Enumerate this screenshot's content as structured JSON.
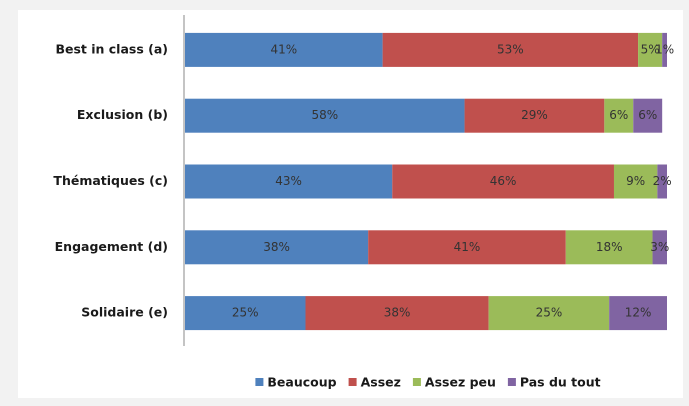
{
  "chart_data": {
    "type": "stacked-bar",
    "categories": [
      "Best in class (a)",
      "Exclusion (b)",
      "Thématiques (c)",
      "Engagement (d)",
      "Solidaire (e)"
    ],
    "series": [
      {
        "name": "Beaucoup",
        "color": "#4f81bd",
        "values": [
          41,
          58,
          43,
          38,
          25
        ],
        "value_labels": [
          "41%",
          "58%",
          "43%",
          "38%",
          "25%"
        ]
      },
      {
        "name": "Assez",
        "color": "#c0504d",
        "values": [
          53,
          29,
          46,
          41,
          38
        ],
        "value_labels": [
          "53%",
          "29%",
          "46%",
          "41%",
          "38%"
        ]
      },
      {
        "name": "Assez peu",
        "color": "#9bbb59",
        "values": [
          5,
          6,
          9,
          18,
          25
        ],
        "value_labels": [
          "5%",
          "6%",
          "9%",
          "18%",
          "25%"
        ]
      },
      {
        "name": "Pas du tout",
        "color": "#8064a2",
        "values": [
          1,
          6,
          2,
          3,
          12
        ],
        "value_labels": [
          "1%",
          "6%",
          "2%",
          "3%",
          "12%"
        ]
      }
    ],
    "legend": "bottom"
  }
}
